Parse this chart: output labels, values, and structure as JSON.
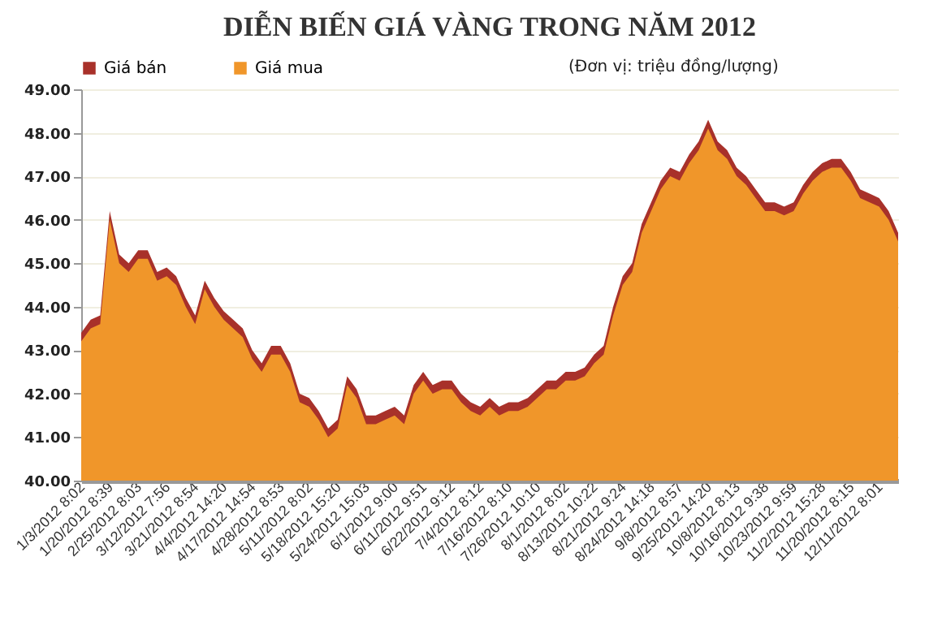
{
  "chart_data": {
    "type": "area",
    "title": "DIỄN BIẾN GIÁ VÀNG TRONG NĂM 2012",
    "annotations": [
      "(Đơn vị: triệu đồng/lượng)"
    ],
    "categories": [
      "1/3/2012 8:02",
      null,
      null,
      "1/20/2012 8:39",
      null,
      null,
      "2/25/2012 8:03",
      null,
      null,
      "3/12/2012 7:56",
      null,
      null,
      "3/21/2012 8:54",
      null,
      null,
      "4/4/2012 14:20",
      null,
      null,
      "4/17/2012 14:54",
      null,
      null,
      "4/28/2012 8:53",
      null,
      null,
      "5/11/2012 8:02",
      null,
      null,
      "5/18/2012 15:20",
      null,
      null,
      "5/24/2012 15:03",
      null,
      null,
      "6/1/2012 9:00",
      null,
      null,
      "6/11/2012 9:51",
      null,
      null,
      "6/22/2012 9:12",
      null,
      null,
      "7/4/2012 8:12",
      null,
      null,
      "7/16/2012 8:10",
      null,
      null,
      "7/26/2012 10:10",
      null,
      null,
      "8/1/2012 8:02",
      null,
      null,
      "8/13/2012 10:22",
      null,
      null,
      "8/21/2012 9:24",
      null,
      null,
      "8/24/2012 14:18",
      null,
      null,
      "9/8/2012 8:57",
      null,
      null,
      "9/25/2012 14:20",
      null,
      null,
      "10/8/2012 8:13",
      null,
      null,
      "10/16/2012 9:38",
      null,
      null,
      "10/23/2012 9:59",
      null,
      null,
      "11/2/2012 15:28",
      null,
      null,
      "11/20/2012 8:15",
      null,
      null,
      "12/11/2012 8:01",
      null,
      null
    ],
    "series": [
      {
        "name": "Giá bán",
        "color": "#a8312a",
        "values": [
          43.4,
          43.7,
          43.8,
          46.2,
          45.2,
          45.0,
          45.3,
          45.3,
          44.8,
          44.9,
          44.7,
          44.2,
          43.8,
          44.6,
          44.2,
          43.9,
          43.7,
          43.5,
          43.0,
          42.7,
          43.1,
          43.1,
          42.7,
          42.0,
          41.9,
          41.6,
          41.2,
          41.4,
          42.4,
          42.1,
          41.5,
          41.5,
          41.6,
          41.7,
          41.5,
          42.2,
          42.5,
          42.2,
          42.3,
          42.3,
          42.0,
          41.8,
          41.7,
          41.9,
          41.7,
          41.8,
          41.8,
          41.9,
          42.1,
          42.3,
          42.3,
          42.5,
          42.5,
          42.6,
          42.9,
          43.1,
          44.0,
          44.7,
          45.0,
          45.9,
          46.4,
          46.9,
          47.2,
          47.1,
          47.5,
          47.8,
          48.3,
          47.8,
          47.6,
          47.2,
          47.0,
          46.7,
          46.4,
          46.4,
          46.3,
          46.4,
          46.8,
          47.1,
          47.3,
          47.4,
          47.4,
          47.1,
          46.7,
          46.6,
          46.5,
          46.2,
          45.7
        ]
      },
      {
        "name": "Giá mua",
        "color": "#f0962a",
        "values": [
          43.2,
          43.5,
          43.6,
          46.0,
          45.0,
          44.8,
          45.1,
          45.1,
          44.6,
          44.7,
          44.5,
          44.0,
          43.6,
          44.4,
          44.0,
          43.7,
          43.5,
          43.3,
          42.8,
          42.5,
          42.9,
          42.9,
          42.5,
          41.8,
          41.7,
          41.4,
          41.0,
          41.2,
          42.2,
          41.9,
          41.3,
          41.3,
          41.4,
          41.5,
          41.3,
          42.0,
          42.3,
          42.0,
          42.1,
          42.1,
          41.8,
          41.6,
          41.5,
          41.7,
          41.5,
          41.6,
          41.6,
          41.7,
          41.9,
          42.1,
          42.1,
          42.3,
          42.3,
          42.4,
          42.7,
          42.9,
          43.8,
          44.5,
          44.8,
          45.7,
          46.2,
          46.7,
          47.0,
          46.9,
          47.3,
          47.6,
          48.1,
          47.6,
          47.4,
          47.0,
          46.8,
          46.5,
          46.2,
          46.2,
          46.1,
          46.2,
          46.6,
          46.9,
          47.1,
          47.2,
          47.2,
          46.9,
          46.5,
          46.4,
          46.3,
          46.0,
          45.5
        ]
      }
    ],
    "ylim": [
      40,
      49
    ],
    "yticks": [
      {
        "value": 40,
        "label": "40.00"
      },
      {
        "value": 41,
        "label": "41.00"
      },
      {
        "value": 42,
        "label": "42.00"
      },
      {
        "value": 43,
        "label": "43.00"
      },
      {
        "value": 44,
        "label": "44.00"
      },
      {
        "value": 45,
        "label": "45.00"
      },
      {
        "value": 46,
        "label": "46.00"
      },
      {
        "value": 47,
        "label": "47.00"
      },
      {
        "value": 48,
        "label": "48.00"
      },
      {
        "value": 49,
        "label": "49.00"
      }
    ],
    "grid": "y",
    "legend": "top"
  }
}
